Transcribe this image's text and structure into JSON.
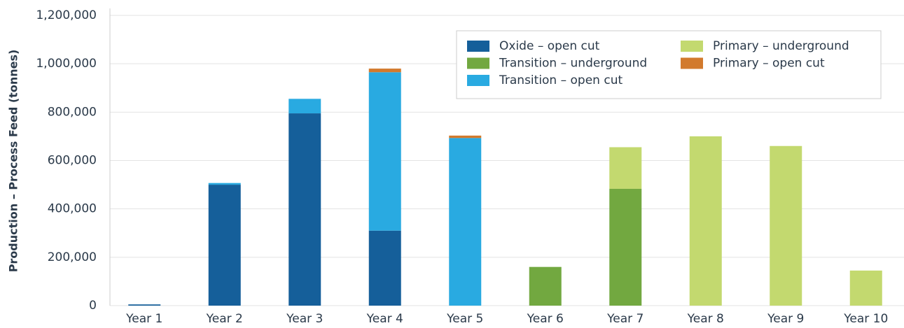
{
  "chart_data": {
    "type": "stacked_bar",
    "y_label": "Production – Process Feed (tonnes)",
    "categories": [
      "Year 1",
      "Year 2",
      "Year 3",
      "Year 4",
      "Year 5",
      "Year 6",
      "Year 7",
      "Year 8",
      "Year 9",
      "Year 10"
    ],
    "series": [
      {
        "name": "Oxide – open cut",
        "color": "#155f9a",
        "values": [
          5000,
          500000,
          795000,
          310000,
          0,
          0,
          0,
          0,
          0,
          0
        ]
      },
      {
        "name": "Transition – underground",
        "color": "#72a840",
        "values": [
          0,
          0,
          0,
          0,
          0,
          160000,
          483000,
          0,
          0,
          0
        ]
      },
      {
        "name": "Transition – open cut",
        "color": "#29aae1",
        "values": [
          0,
          7000,
          60000,
          655000,
          693000,
          0,
          0,
          0,
          0,
          0
        ]
      },
      {
        "name": "Primary – underground",
        "color": "#c3d96f",
        "values": [
          0,
          0,
          0,
          0,
          0,
          0,
          172000,
          700000,
          660000,
          145000
        ]
      },
      {
        "name": "Primary – open cut",
        "color": "#d27a2d",
        "values": [
          0,
          0,
          0,
          15000,
          10000,
          0,
          0,
          0,
          0,
          0
        ]
      }
    ],
    "ylim": [
      0,
      1200000
    ],
    "yticks": [
      0,
      {
        "value": 200000,
        "label": "200,000"
      },
      {
        "value": 400000,
        "label": "400,000"
      },
      {
        "value": 600000,
        "label": "600,000"
      },
      {
        "value": 800000,
        "label": "800,000"
      },
      {
        "value": 1000000,
        "label": "1,000,000"
      },
      {
        "value": 1200000,
        "label": "1,200,000"
      }
    ],
    "grid": true,
    "legend": "upper right"
  }
}
